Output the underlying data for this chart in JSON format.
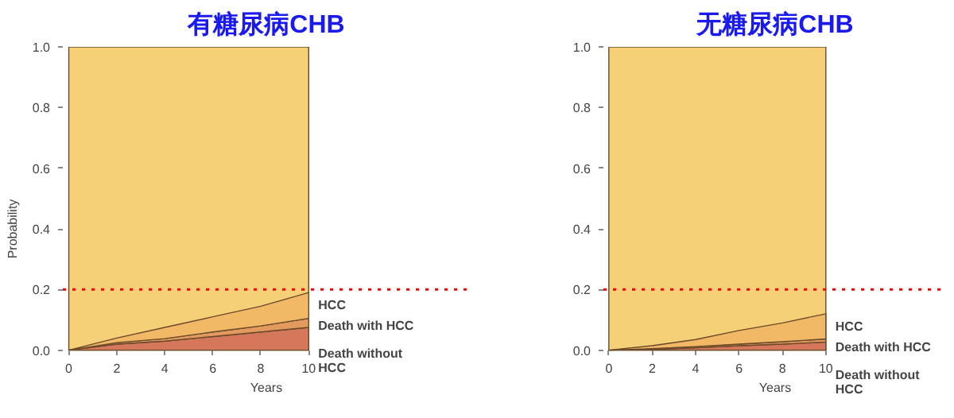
{
  "chart_data": [
    {
      "type": "area",
      "title": "有糖尿病CHB",
      "xlabel": "Years",
      "ylabel": "Probability",
      "stacked": true,
      "x": [
        0,
        2,
        4,
        6,
        8,
        10
      ],
      "xlim": [
        0,
        10
      ],
      "xticks": [
        0,
        2,
        4,
        6,
        8,
        10
      ],
      "ylim": [
        0,
        1
      ],
      "yticks": [
        {
          "value": 0,
          "label": "0.0"
        },
        {
          "value": 0.2,
          "label": "0.2"
        },
        {
          "value": 0.4,
          "label": "0.4"
        },
        {
          "value": 0.6,
          "label": "0.6"
        },
        {
          "value": 0.8,
          "label": "0.8"
        },
        {
          "value": 1,
          "label": "1.0"
        }
      ],
      "series": [
        {
          "name": "Death without HCC",
          "color": "#d4775a",
          "values": [
            0,
            0.02,
            0.03,
            0.045,
            0.06,
            0.075
          ]
        },
        {
          "name": "Death with HCC",
          "color": "#e39a5e",
          "values": [
            0,
            0.005,
            0.008,
            0.015,
            0.02,
            0.03
          ]
        },
        {
          "name": "HCC",
          "color": "#f1b866",
          "values": [
            0,
            0.015,
            0.037,
            0.05,
            0.065,
            0.085
          ]
        }
      ],
      "bands": [
        {
          "axis": "y",
          "from": 0,
          "to": 1,
          "color": "#f5d077"
        }
      ],
      "ref_lines": [
        {
          "axis": "y",
          "value": 0.2,
          "color": "#ff0000",
          "line_style": "dotted"
        }
      ]
    },
    {
      "type": "area",
      "title": "无糖尿病CHB",
      "xlabel": "Years",
      "stacked": true,
      "x": [
        0,
        2,
        4,
        6,
        8,
        10
      ],
      "xlim": [
        0,
        10
      ],
      "xticks": [
        0,
        2,
        4,
        6,
        8,
        10
      ],
      "ylim": [
        0,
        1
      ],
      "yticks": [
        {
          "value": 0,
          "label": "0.0"
        },
        {
          "value": 0.2,
          "label": "0.2"
        },
        {
          "value": 0.4,
          "label": "0.4"
        },
        {
          "value": 0.6,
          "label": "0.6"
        },
        {
          "value": 0.8,
          "label": "0.8"
        },
        {
          "value": 1,
          "label": "1.0"
        }
      ],
      "series": [
        {
          "name": "Death without HCC",
          "color": "#d4775a",
          "values": [
            0,
            0.003,
            0.008,
            0.015,
            0.02,
            0.027
          ]
        },
        {
          "name": "Death with HCC",
          "color": "#e39a5e",
          "values": [
            0,
            0.002,
            0.004,
            0.005,
            0.008,
            0.01
          ]
        },
        {
          "name": "HCC",
          "color": "#f1b866",
          "values": [
            0,
            0.01,
            0.023,
            0.045,
            0.062,
            0.083
          ]
        }
      ],
      "bands": [
        {
          "axis": "y",
          "from": 0,
          "to": 1,
          "color": "#f5d077"
        }
      ],
      "ref_lines": [
        {
          "axis": "y",
          "value": 0.2,
          "color": "#ff0000",
          "line_style": "dotted"
        }
      ]
    }
  ]
}
